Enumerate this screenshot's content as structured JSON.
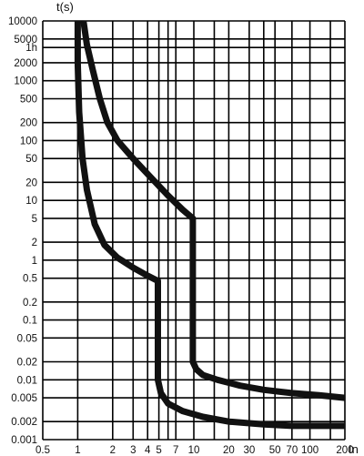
{
  "chart_data": {
    "type": "line",
    "xlabel": "In",
    "ylabel": "t(s)",
    "x_scale": "log",
    "y_scale": "log",
    "xlim": [
      0.5,
      200
    ],
    "ylim": [
      0.001,
      10000
    ],
    "grid": true,
    "x_ticks": [
      {
        "value": 0.5,
        "label": "0.5"
      },
      {
        "value": 1,
        "label": "1"
      },
      {
        "value": 2,
        "label": "2"
      },
      {
        "value": 3,
        "label": "3"
      },
      {
        "value": 4,
        "label": "4"
      },
      {
        "value": 5,
        "label": "5"
      },
      {
        "value": 7,
        "label": "7"
      },
      {
        "value": 10,
        "label": "10"
      },
      {
        "value": 20,
        "label": "20"
      },
      {
        "value": 30,
        "label": "30"
      },
      {
        "value": 50,
        "label": "50"
      },
      {
        "value": 70,
        "label": "70"
      },
      {
        "value": 100,
        "label": "100"
      },
      {
        "value": 200,
        "label": "200"
      }
    ],
    "x_minor_grid": [
      6,
      15,
      40,
      150
    ],
    "y_ticks": [
      {
        "value": 10000,
        "label": "10000"
      },
      {
        "value": 5000,
        "label": "5000"
      },
      {
        "value": 3600,
        "label": "1h"
      },
      {
        "value": 2000,
        "label": "2000"
      },
      {
        "value": 1000,
        "label": "1000"
      },
      {
        "value": 500,
        "label": "500"
      },
      {
        "value": 200,
        "label": "200"
      },
      {
        "value": 100,
        "label": "100"
      },
      {
        "value": 50,
        "label": "50"
      },
      {
        "value": 20,
        "label": "20"
      },
      {
        "value": 10,
        "label": "10"
      },
      {
        "value": 5,
        "label": "5"
      },
      {
        "value": 2,
        "label": "2"
      },
      {
        "value": 1,
        "label": "1"
      },
      {
        "value": 0.5,
        "label": "0.5"
      },
      {
        "value": 0.2,
        "label": "0.2"
      },
      {
        "value": 0.1,
        "label": "0.1"
      },
      {
        "value": 0.05,
        "label": "0.05"
      },
      {
        "value": 0.02,
        "label": "0.02"
      },
      {
        "value": 0.01,
        "label": "0.01"
      },
      {
        "value": 0.005,
        "label": "0.005"
      },
      {
        "value": 0.002,
        "label": "0.002"
      },
      {
        "value": 0.001,
        "label": "0.001"
      }
    ],
    "series": [
      {
        "points": [
          [
            1.0,
            10000
          ],
          [
            1.0,
            2000
          ],
          [
            1.03,
            300
          ],
          [
            1.1,
            50
          ],
          [
            1.2,
            15
          ],
          [
            1.4,
            4
          ],
          [
            1.7,
            1.8
          ],
          [
            2.2,
            1.1
          ],
          [
            3.0,
            0.75
          ],
          [
            4.0,
            0.55
          ],
          [
            4.9,
            0.45
          ],
          [
            4.9,
            0.01
          ],
          [
            5.2,
            0.006
          ],
          [
            6,
            0.004
          ],
          [
            8,
            0.003
          ],
          [
            12,
            0.0024
          ],
          [
            20,
            0.002
          ],
          [
            40,
            0.0018
          ],
          [
            70,
            0.0017
          ],
          [
            120,
            0.0017
          ],
          [
            200,
            0.0017
          ]
        ]
      },
      {
        "points": [
          [
            1.12,
            10000
          ],
          [
            1.2,
            4000
          ],
          [
            1.35,
            1500
          ],
          [
            1.55,
            500
          ],
          [
            1.8,
            200
          ],
          [
            2.2,
            100
          ],
          [
            3.0,
            50
          ],
          [
            4.2,
            25
          ],
          [
            6.0,
            12
          ],
          [
            8.0,
            7
          ],
          [
            9.8,
            5
          ],
          [
            9.8,
            0.02
          ],
          [
            10.5,
            0.015
          ],
          [
            12,
            0.012
          ],
          [
            16,
            0.01
          ],
          [
            25,
            0.008
          ],
          [
            40,
            0.0068
          ],
          [
            70,
            0.006
          ],
          [
            120,
            0.0055
          ],
          [
            200,
            0.005
          ]
        ]
      }
    ]
  }
}
